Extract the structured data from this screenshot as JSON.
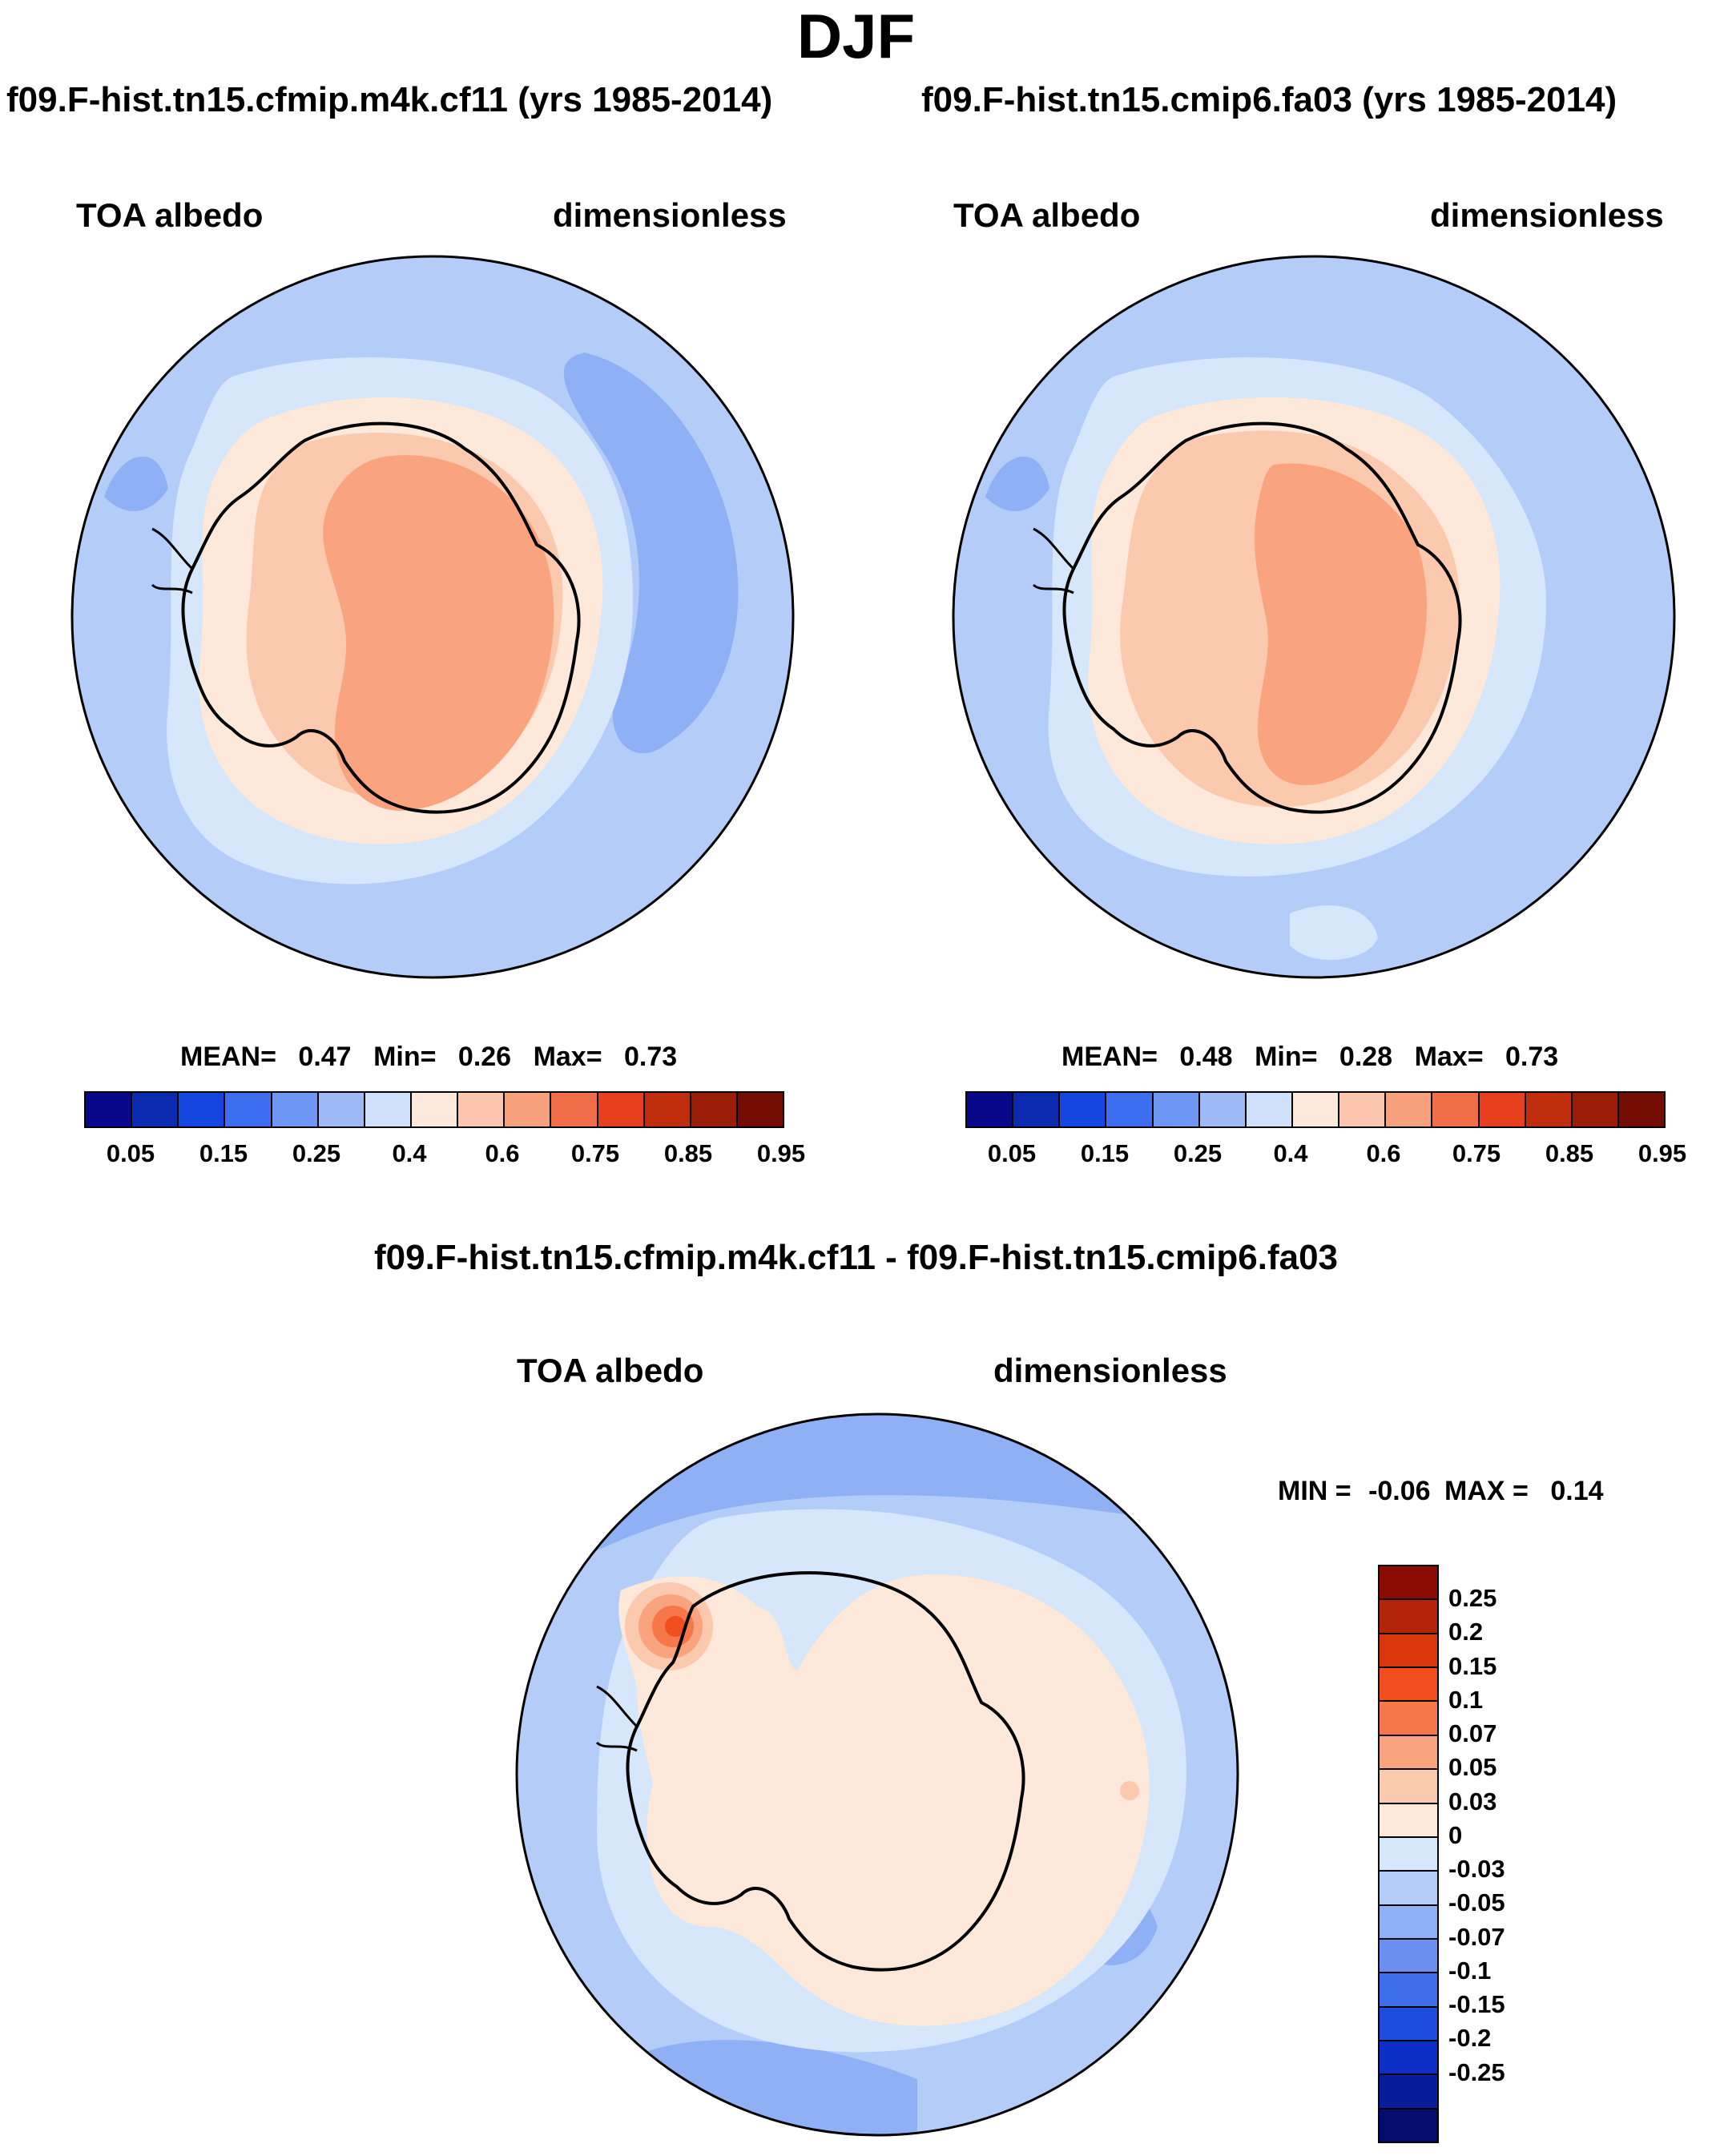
{
  "season": "DJF",
  "panels": {
    "case1": {
      "title": "f09.F-hist.tn15.cfmip.m4k.cf11 (yrs 1985-2014)",
      "variable": "TOA albedo",
      "units": "dimensionless",
      "stats": {
        "mean_label": "MEAN=",
        "mean": "0.47",
        "min_label": "Min=",
        "min": "0.26",
        "max_label": "Max=",
        "max": "0.73"
      }
    },
    "case2": {
      "title": "f09.F-hist.tn15.cmip6.fa03 (yrs 1985-2014)",
      "variable": "TOA albedo",
      "units": "dimensionless",
      "stats": {
        "mean_label": "MEAN=",
        "mean": "0.48",
        "min_label": "Min=",
        "min": "0.28",
        "max_label": "Max=",
        "max": "0.73"
      }
    },
    "diff": {
      "title": "f09.F-hist.tn15.cfmip.m4k.cf11 - f09.F-hist.tn15.cmip6.fa03",
      "variable": "TOA albedo",
      "units": "dimensionless",
      "stats": {
        "min_label": "MIN =",
        "min": "-0.06",
        "max_label": "MAX =",
        "max": "0.14"
      }
    }
  },
  "colorbar_main": {
    "colors": [
      "#08088a",
      "#0a2ab0",
      "#1447e0",
      "#3d6ef0",
      "#6d96f5",
      "#9dbaf7",
      "#cfe0fb",
      "#fde8dc",
      "#fbc6ad",
      "#f7a07c",
      "#f06e48",
      "#e8401d",
      "#c02d0c",
      "#9a1d07",
      "#730c02"
    ],
    "tick_labels": [
      "0.05",
      "0.15",
      "0.25",
      "0.4",
      "0.6",
      "0.75",
      "0.85",
      "0.95"
    ]
  },
  "colorbar_diff": {
    "colors_top_to_bottom": [
      "#8b0a02",
      "#b42408",
      "#d9360b",
      "#f04e1e",
      "#f6784a",
      "#f9a47f",
      "#fbc9ae",
      "#fde8da",
      "#d6e6fb",
      "#b4cdf8",
      "#8fb0f4",
      "#6a8ff1",
      "#3f6eeb",
      "#1f4de0",
      "#0c30c5",
      "#061c9a",
      "#030d70"
    ],
    "tick_labels": [
      "0.25",
      "0.2",
      "0.15",
      "0.1",
      "0.07",
      "0.05",
      "0.03",
      "0",
      "-0.03",
      "-0.05",
      "-0.07",
      "-0.1",
      "-0.15",
      "-0.2",
      "-0.25"
    ]
  }
}
